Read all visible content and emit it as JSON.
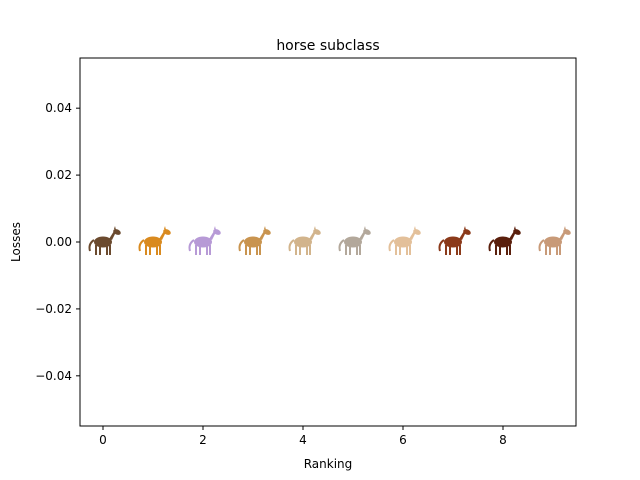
{
  "chart_data": {
    "type": "scatter",
    "title": "horse subclass",
    "xlabel": "Ranking",
    "ylabel": "Losses",
    "xlim": [
      -0.46,
      9.46
    ],
    "ylim": [
      -0.055,
      0.055
    ],
    "xticks": [
      0,
      2,
      4,
      6,
      8
    ],
    "xtick_labels": [
      "0",
      "2",
      "4",
      "6",
      "8"
    ],
    "yticks": [
      -0.04,
      -0.02,
      0.0,
      0.02,
      0.04
    ],
    "ytick_labels": [
      "−0.04",
      "−0.02",
      "0.00",
      "0.02",
      "0.04"
    ],
    "grid": false,
    "points": [
      {
        "x": 0,
        "y": 0.0,
        "marker": "horse-thumbnail",
        "color": "#6b4a2e"
      },
      {
        "x": 1,
        "y": 0.0,
        "marker": "horse-thumbnail",
        "color": "#d98a1f"
      },
      {
        "x": 2,
        "y": 0.0,
        "marker": "horse-thumbnail",
        "color": "#b79ad6"
      },
      {
        "x": 3,
        "y": 0.0,
        "marker": "horse-thumbnail",
        "color": "#c9944f"
      },
      {
        "x": 4,
        "y": 0.0,
        "marker": "horse-thumbnail",
        "color": "#d2b48c"
      },
      {
        "x": 5,
        "y": 0.0,
        "marker": "horse-thumbnail",
        "color": "#b3a89b"
      },
      {
        "x": 6,
        "y": 0.0,
        "marker": "horse-thumbnail",
        "color": "#e3c09a"
      },
      {
        "x": 7,
        "y": 0.0,
        "marker": "horse-thumbnail",
        "color": "#8b3a1a"
      },
      {
        "x": 8,
        "y": 0.0,
        "marker": "horse-thumbnail",
        "color": "#5a1f0c"
      },
      {
        "x": 9,
        "y": 0.0,
        "marker": "horse-thumbnail",
        "color": "#c89a78"
      }
    ]
  }
}
